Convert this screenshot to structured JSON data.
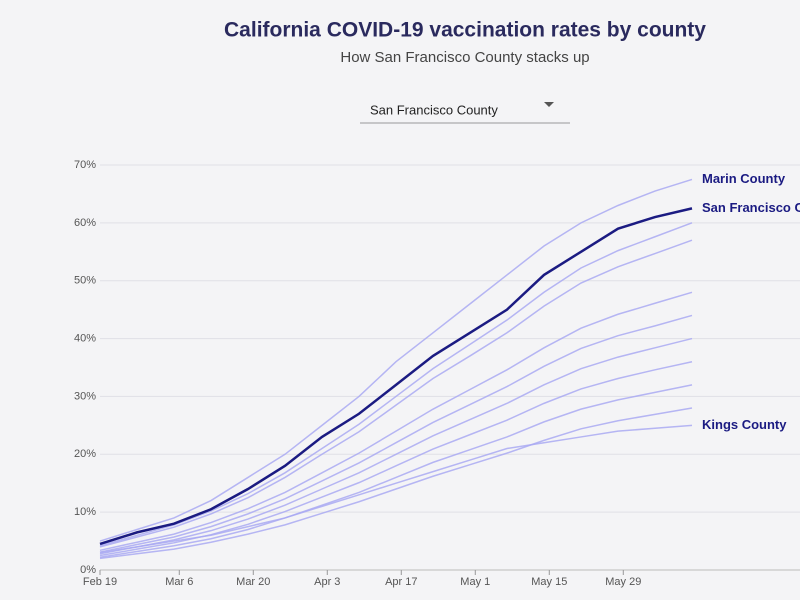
{
  "chart_data": {
    "type": "line",
    "title": "California COVID-19 vaccination rates by county",
    "subtitle": "How San Francisco County stacks up",
    "dropdown": "San Francisco County",
    "x": [
      0,
      7,
      14,
      21,
      28,
      35,
      42,
      49,
      56,
      63,
      70,
      77,
      84,
      91,
      98,
      105,
      112
    ],
    "xlim": [
      0,
      112
    ],
    "xticks": [
      {
        "value": 0,
        "label": "Feb 19"
      },
      {
        "value": 15,
        "label": "Mar 6"
      },
      {
        "value": 29,
        "label": "Mar 20"
      },
      {
        "value": 43,
        "label": "Apr 3"
      },
      {
        "value": 57,
        "label": "Apr 17"
      },
      {
        "value": 71,
        "label": "May 1"
      },
      {
        "value": 85,
        "label": "May 15"
      },
      {
        "value": 99,
        "label": "May 29"
      }
    ],
    "ylim": [
      0,
      70
    ],
    "yticks": [
      {
        "value": 0,
        "label": "0%"
      },
      {
        "value": 10,
        "label": "10%"
      },
      {
        "value": 20,
        "label": "20%"
      },
      {
        "value": 30,
        "label": "30%"
      },
      {
        "value": 40,
        "label": "40%"
      },
      {
        "value": 50,
        "label": "50%"
      },
      {
        "value": 60,
        "label": "60%"
      },
      {
        "value": 70,
        "label": "70%"
      }
    ],
    "grid": true,
    "series": [
      {
        "color": "#a9a9f2",
        "values": [
          4.2,
          6,
          7.8,
          10.2,
          13.2,
          16.8,
          21,
          25.2,
          30,
          34.8,
          39,
          43.2,
          48,
          52.2,
          55.2,
          57.6,
          60
        ]
      },
      {
        "color": "#a9a9f2",
        "values": [
          4,
          5.7,
          7.4,
          9.7,
          12.5,
          16,
          20,
          23.9,
          28.5,
          33.1,
          37,
          41,
          45.6,
          49.6,
          52.4,
          54.7,
          57
        ]
      },
      {
        "color": "#a9a9f2",
        "values": [
          3.4,
          4.8,
          6.2,
          8.2,
          10.6,
          13.4,
          16.8,
          20.2,
          24,
          27.8,
          31.2,
          34.6,
          38.4,
          41.8,
          44.2,
          46.1,
          48
        ]
      },
      {
        "color": "#a9a9f2",
        "values": [
          3.1,
          4.4,
          5.7,
          7.5,
          9.7,
          12.3,
          15.4,
          18.5,
          22,
          25.5,
          28.6,
          31.7,
          35.2,
          38.3,
          40.5,
          42.2,
          44
        ]
      },
      {
        "color": "#a9a9f2",
        "values": [
          2.8,
          4,
          5.2,
          6.8,
          8.8,
          11.2,
          14,
          16.8,
          20,
          23.2,
          26,
          28.8,
          32,
          34.8,
          36.8,
          38.4,
          40
        ]
      },
      {
        "color": "#a9a9f2",
        "values": [
          2.5,
          3.6,
          4.7,
          6.1,
          7.9,
          10.1,
          12.6,
          15.1,
          18,
          20.9,
          23.4,
          25.9,
          28.8,
          31.3,
          33.1,
          34.6,
          36
        ]
      },
      {
        "color": "#a9a9f2",
        "values": [
          2.2,
          3.2,
          4.2,
          5.4,
          7,
          9,
          11.2,
          13.4,
          16,
          18.6,
          20.8,
          23,
          25.6,
          27.8,
          29.4,
          30.7,
          32
        ]
      },
      {
        "color": "#a9a9f2",
        "values": [
          2,
          2.8,
          3.6,
          4.8,
          6.2,
          7.8,
          9.8,
          11.8,
          14,
          16.2,
          18.2,
          20.2,
          22.4,
          24.4,
          25.8,
          26.9,
          28
        ]
      },
      {
        "name": "Marin County",
        "color": "#a9a9f2",
        "values": [
          5,
          7,
          9,
          12,
          16,
          20,
          25,
          30,
          36,
          41,
          46,
          51,
          56,
          60,
          63,
          65.5,
          67.5
        ]
      },
      {
        "name": "Kings County",
        "color": "#a9a9f2",
        "values": [
          3,
          4,
          5,
          6,
          7.5,
          9,
          11,
          13,
          15,
          17,
          19,
          21,
          22,
          23,
          24,
          24.5,
          25
        ]
      },
      {
        "name": "San Francisco County",
        "color": "#1b1b82",
        "values": [
          4.5,
          6.5,
          8,
          10.5,
          14,
          18,
          23,
          27,
          32,
          37,
          41,
          45,
          51,
          55,
          59,
          61,
          62.5
        ]
      }
    ]
  }
}
